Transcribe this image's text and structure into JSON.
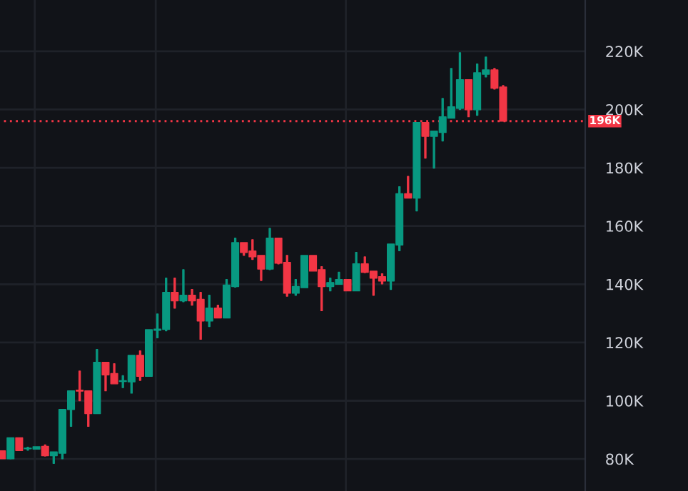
{
  "chart_data": {
    "type": "candlestick",
    "categories": [
      null,
      null,
      null,
      null,
      null,
      null,
      null,
      null,
      null,
      null,
      null,
      null,
      null,
      null,
      null,
      null,
      null,
      null,
      null,
      null,
      null,
      null,
      null,
      null,
      null,
      null,
      null,
      null,
      null,
      null,
      null,
      null,
      null,
      null,
      null,
      null,
      null,
      null,
      null,
      null,
      null,
      null,
      null,
      null,
      null,
      null,
      null,
      null,
      null,
      null,
      null,
      null,
      null,
      null,
      null,
      null,
      null,
      null,
      null,
      null,
      null,
      null,
      null,
      null,
      null,
      null,
      null,
      null
    ],
    "ohlc": [
      [
        82.8,
        82.8,
        80.1,
        80.1
      ],
      [
        80.1,
        87.3,
        80.0,
        87.3
      ],
      [
        87.3,
        87.3,
        82.9,
        82.9
      ],
      [
        83.5,
        84.0,
        83.0,
        83.7
      ],
      [
        83.4,
        84.2,
        83.4,
        84.2
      ],
      [
        84.3,
        84.8,
        81.0,
        81.1
      ],
      [
        81.1,
        82.4,
        78.5,
        82.4
      ],
      [
        82.0,
        97.0,
        80.1,
        97.0
      ],
      [
        97.0,
        103.4,
        91.2,
        103.4
      ],
      [
        103.6,
        110.2,
        100.0,
        103.3
      ],
      [
        103.4,
        103.4,
        91.2,
        95.6
      ],
      [
        95.6,
        117.6,
        95.6,
        113.2
      ],
      [
        113.2,
        113.2,
        103.4,
        108.9
      ],
      [
        109.3,
        112.7,
        105.8,
        105.8
      ],
      [
        106.6,
        108.6,
        104.5,
        106.9
      ],
      [
        106.5,
        115.6,
        102.6,
        115.6
      ],
      [
        115.6,
        117.1,
        107.0,
        108.4
      ],
      [
        108.4,
        124.4,
        108.4,
        124.4
      ],
      [
        124.2,
        129.8,
        121.6,
        124.6
      ],
      [
        124.5,
        142.1,
        124.0,
        137.2
      ],
      [
        137.2,
        142.1,
        131.8,
        134.3
      ],
      [
        134.3,
        145.0,
        134.0,
        136.2
      ],
      [
        136.2,
        138.2,
        132.8,
        134.3
      ],
      [
        134.8,
        137.2,
        121.1,
        127.4
      ],
      [
        127.4,
        136.2,
        125.5,
        131.8
      ],
      [
        131.8,
        132.8,
        128.4,
        128.4
      ],
      [
        128.4,
        141.6,
        128.4,
        139.7
      ],
      [
        139.2,
        155.8,
        139.0,
        154.3
      ],
      [
        154.3,
        154.3,
        149.9,
        150.9
      ],
      [
        151.4,
        155.3,
        148.5,
        149.4
      ],
      [
        149.9,
        149.9,
        141.3,
        145.2
      ],
      [
        145.2,
        159.2,
        145.0,
        155.8
      ],
      [
        155.8,
        155.8,
        147.0,
        147.2
      ],
      [
        147.5,
        149.9,
        135.9,
        136.9
      ],
      [
        136.9,
        141.6,
        136.2,
        139.2
      ],
      [
        138.8,
        149.9,
        138.8,
        149.9
      ],
      [
        149.9,
        149.9,
        144.5,
        144.5
      ],
      [
        145.0,
        146.0,
        130.9,
        139.2
      ],
      [
        139.2,
        142.1,
        137.7,
        140.6
      ],
      [
        140.0,
        144.1,
        140.0,
        141.6
      ],
      [
        141.6,
        141.6,
        137.7,
        137.7
      ],
      [
        137.7,
        150.9,
        137.7,
        147.0
      ],
      [
        147.0,
        149.4,
        144.0,
        144.1
      ],
      [
        144.5,
        144.5,
        136.2,
        142.1
      ],
      [
        142.6,
        143.6,
        140.1,
        141.1
      ],
      [
        141.1,
        153.8,
        138.2,
        153.8
      ],
      [
        153.5,
        173.5,
        151.5,
        171.1
      ],
      [
        171.1,
        177.0,
        169.6,
        169.6
      ],
      [
        169.6,
        195.5,
        165.2,
        195.5
      ],
      [
        195.5,
        195.5,
        183.3,
        190.8
      ],
      [
        190.8,
        192.6,
        179.9,
        192.6
      ],
      [
        192.1,
        203.8,
        189.2,
        197.5
      ],
      [
        197.0,
        214.1,
        197.0,
        200.9
      ],
      [
        200.4,
        219.5,
        200.0,
        210.2
      ],
      [
        210.2,
        210.2,
        197.5,
        199.9
      ],
      [
        199.9,
        215.6,
        198.0,
        212.6
      ],
      [
        212.1,
        218.0,
        211.2,
        213.6
      ],
      [
        213.6,
        214.1,
        207.0,
        207.3
      ],
      [
        207.7,
        208.2,
        196.0,
        196.0
      ],
      null,
      null,
      null,
      null,
      null,
      null,
      null,
      null,
      null
    ],
    "colors": [
      "#f23645",
      "#089981",
      "#f23645",
      "#089981",
      "#089981",
      "#f23645",
      "#089981",
      "#089981",
      "#089981",
      "#f23645",
      "#f23645",
      "#089981",
      "#f23645",
      "#f23645",
      "#089981",
      "#089981",
      "#f23645",
      "#089981",
      "#089981",
      "#089981",
      "#f23645",
      "#089981",
      "#f23645",
      "#f23645",
      "#089981",
      "#f23645",
      "#089981",
      "#089981",
      "#f23645",
      "#f23645",
      "#f23645",
      "#089981",
      "#f23645",
      "#f23645",
      "#089981",
      "#089981",
      "#f23645",
      "#f23645",
      "#089981",
      "#089981",
      "#f23645",
      "#089981",
      "#f23645",
      "#f23645",
      "#f23645",
      "#089981",
      "#089981",
      "#f23645",
      "#089981",
      "#f23645",
      "#089981",
      "#089981",
      "#089981",
      "#089981",
      "#f23645",
      "#089981",
      "#089981",
      "#f23645",
      "#f23645",
      null,
      null,
      null,
      null,
      null,
      null,
      null,
      null,
      null
    ],
    "ylim": [
      69,
      237.6
    ],
    "yticks": [
      {
        "value": 80,
        "label": "80K"
      },
      {
        "value": 100,
        "label": "100K"
      },
      {
        "value": 120,
        "label": "120K"
      },
      {
        "value": 140,
        "label": "140K"
      },
      {
        "value": 160,
        "label": "160K"
      },
      {
        "value": 180,
        "label": "180K"
      },
      {
        "value": 200,
        "label": "200K"
      },
      {
        "value": 220,
        "label": "220K"
      }
    ],
    "ref_lines": [
      {
        "axis": "y",
        "value": 196,
        "label": "196K",
        "color": "#f23645",
        "line_style": "dotted"
      }
    ],
    "grid": true,
    "tick_labels": "y"
  }
}
